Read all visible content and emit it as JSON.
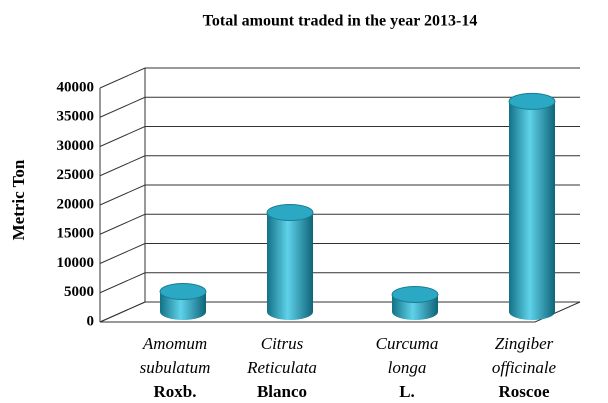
{
  "chart_data": {
    "type": "bar3d",
    "title": "Total amount traded in the year 2013-14",
    "y_label": "Metric Ton",
    "categories": [
      [
        "Amomum",
        "subulatum",
        "Roxb."
      ],
      [
        "Citrus",
        "Reticulata",
        "Blanco"
      ],
      [
        "Curcuma",
        "longa",
        "L."
      ],
      [
        "Zingiber",
        "officinale",
        "Roscoe"
      ]
    ],
    "values": [
      3500,
      17000,
      3000,
      36000
    ],
    "color": "#2aa8c4",
    "ylim": [
      0,
      40000
    ],
    "yticks": [
      0,
      5000,
      10000,
      15000,
      20000,
      25000,
      30000,
      35000,
      40000
    ],
    "grid": true
  }
}
